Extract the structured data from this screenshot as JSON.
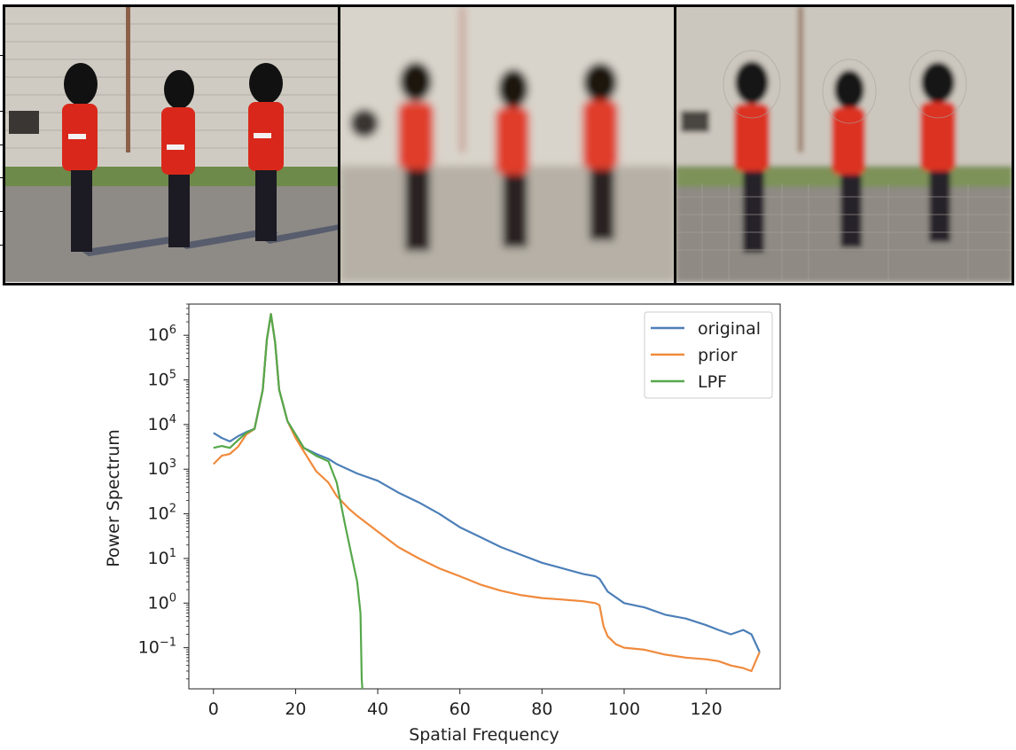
{
  "chart_data": {
    "type": "line",
    "title": "",
    "xlabel": "Spatial Frequency",
    "ylabel": "Power Spectrum",
    "yscale": "log",
    "xlim": [
      -6,
      138
    ],
    "ylim": [
      0.012,
      5000000
    ],
    "xticks": [
      "0",
      "20",
      "40",
      "60",
      "80",
      "100",
      "120"
    ],
    "yticks": [
      {
        "base": "10",
        "exp": "−1"
      },
      {
        "base": "10",
        "exp": "0"
      },
      {
        "base": "10",
        "exp": "1"
      },
      {
        "base": "10",
        "exp": "2"
      },
      {
        "base": "10",
        "exp": "3"
      },
      {
        "base": "10",
        "exp": "4"
      },
      {
        "base": "10",
        "exp": "5"
      },
      {
        "base": "10",
        "exp": "6"
      }
    ],
    "grid": false,
    "legend_position": "top-right",
    "series": [
      {
        "name": "original",
        "color": "#4c7fb8",
        "x": [
          0,
          2,
          4,
          6,
          8,
          10,
          12,
          13,
          14,
          15,
          16,
          18,
          20,
          22,
          25,
          28,
          30,
          35,
          40,
          45,
          50,
          55,
          60,
          65,
          70,
          75,
          80,
          85,
          90,
          93,
          94,
          96,
          100,
          105,
          110,
          115,
          120,
          123,
          126,
          129,
          131,
          133
        ],
        "y": [
          6500,
          5000,
          4200,
          5500,
          6800,
          8000,
          60000,
          800000,
          3000000,
          700000,
          60000,
          12000,
          6000,
          3000,
          2200,
          1700,
          1300,
          800,
          550,
          300,
          180,
          100,
          50,
          30,
          18,
          12,
          8,
          6,
          4.5,
          4,
          3.5,
          1.8,
          1.0,
          0.8,
          0.55,
          0.45,
          0.32,
          0.25,
          0.2,
          0.25,
          0.2,
          0.08
        ]
      },
      {
        "name": "prior",
        "color": "#f08a3c",
        "x": [
          0,
          2,
          4,
          6,
          8,
          10,
          12,
          13,
          14,
          15,
          16,
          18,
          20,
          22,
          25,
          28,
          30,
          33,
          35,
          40,
          45,
          50,
          55,
          60,
          65,
          70,
          75,
          80,
          85,
          90,
          93,
          94,
          95,
          96,
          98,
          100,
          105,
          110,
          115,
          120,
          123,
          126,
          129,
          131,
          133
        ],
        "y": [
          1300,
          2000,
          2200,
          3200,
          6000,
          8000,
          60000,
          800000,
          3000000,
          700000,
          60000,
          12000,
          5000,
          2500,
          900,
          500,
          250,
          130,
          90,
          40,
          18,
          10,
          6,
          4,
          2.6,
          1.9,
          1.5,
          1.3,
          1.2,
          1.1,
          1.0,
          0.9,
          0.3,
          0.18,
          0.12,
          0.1,
          0.09,
          0.07,
          0.06,
          0.055,
          0.05,
          0.04,
          0.035,
          0.03,
          0.08
        ]
      },
      {
        "name": "LPF",
        "color": "#55a84a",
        "x": [
          0,
          2,
          4,
          6,
          8,
          10,
          12,
          13,
          14,
          15,
          16,
          18,
          20,
          22,
          25,
          28,
          30,
          32,
          34,
          35,
          35.8,
          36.1,
          36.3
        ],
        "y": [
          3000,
          3300,
          3000,
          4500,
          6500,
          8000,
          60000,
          800000,
          3000000,
          700000,
          60000,
          12000,
          6000,
          3000,
          2000,
          1500,
          500,
          60,
          8,
          3,
          0.6,
          0.02,
          0.005
        ]
      }
    ]
  }
}
